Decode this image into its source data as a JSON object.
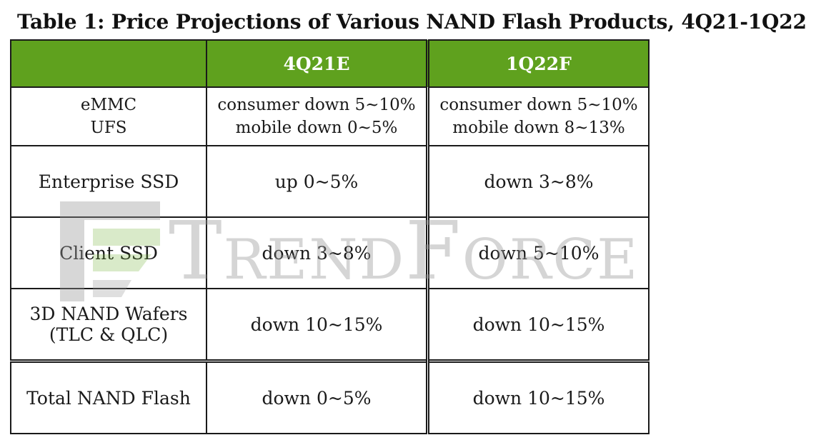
{
  "chart_data": {
    "type": "table",
    "title": "Table 1: Price Projections of Various NAND Flash Products, 4Q21-1Q22",
    "columns": [
      "",
      "4Q21E",
      "1Q22F"
    ],
    "rows": [
      {
        "product": [
          "eMMC",
          "UFS"
        ],
        "q4_21": [
          "consumer down 5~10%",
          "mobile down 0~5%"
        ],
        "q1_22": [
          "consumer down 5~10%",
          "mobile down 8~13%"
        ]
      },
      {
        "product": [
          "Enterprise SSD"
        ],
        "q4_21": [
          "up 0~5%"
        ],
        "q1_22": [
          "down 3~8%"
        ]
      },
      {
        "product": [
          "Client SSD"
        ],
        "q4_21": [
          "down 3~8%"
        ],
        "q1_22": [
          "down 5~10%"
        ]
      },
      {
        "product": [
          "3D NAND Wafers",
          "(TLC & QLC)"
        ],
        "q4_21": [
          "down 10~15%"
        ],
        "q1_22": [
          "down 10~15%"
        ]
      },
      {
        "product": [
          "Total NAND Flash"
        ],
        "q4_21": [
          "down 0~5%"
        ],
        "q1_22": [
          "down 10~15%"
        ]
      }
    ]
  },
  "watermark": {
    "text": "TrendForce"
  },
  "colors": {
    "header_bg": "#5fa11e",
    "header_text": "#ffffff",
    "border": "#1a1a1a"
  }
}
